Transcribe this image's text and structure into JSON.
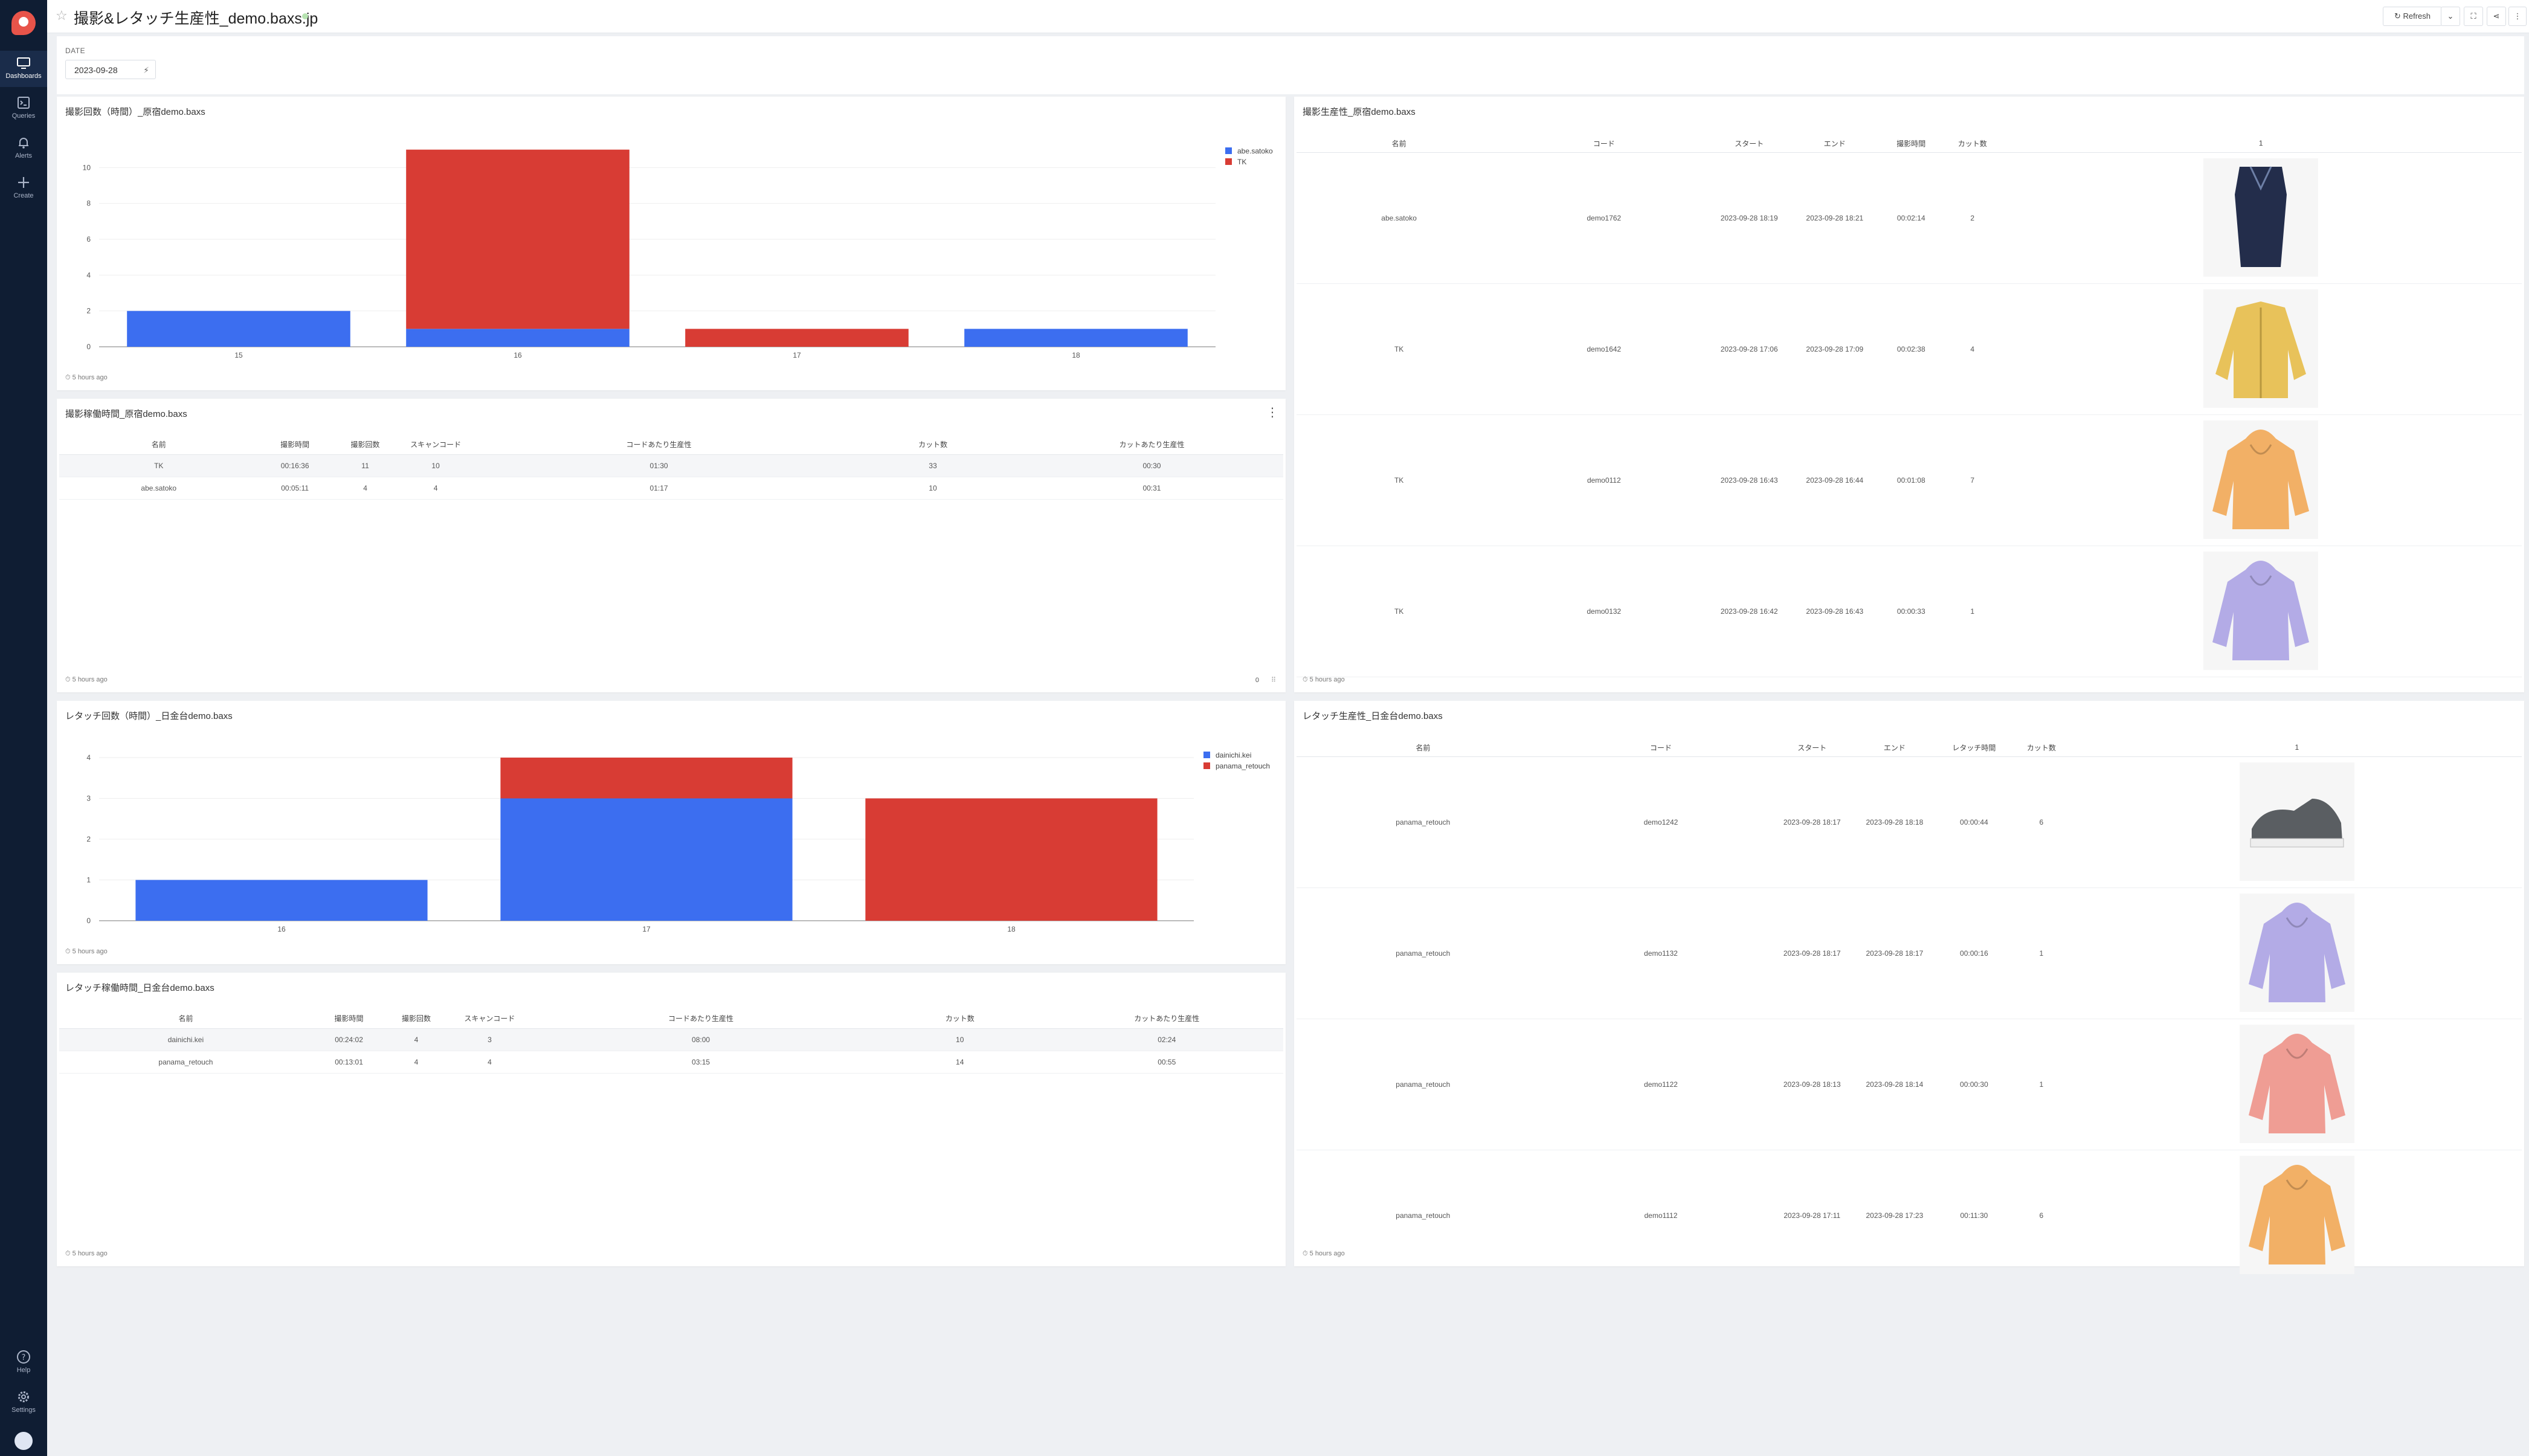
{
  "sidebar": {
    "items": [
      {
        "label": "Dashboards",
        "icon": "monitor-icon"
      },
      {
        "label": "Queries",
        "icon": "terminal-icon"
      },
      {
        "label": "Alerts",
        "icon": "bell-icon"
      },
      {
        "label": "Create",
        "icon": "plus-icon"
      }
    ],
    "bottom": [
      {
        "label": "Help",
        "icon": "help-icon"
      },
      {
        "label": "Settings",
        "icon": "gear-icon"
      }
    ]
  },
  "header": {
    "title": "撮影&レタッチ生産性_demo.baxs.jp",
    "refresh_label": "Refresh"
  },
  "filter": {
    "label": "DATE",
    "value": "2023-09-28"
  },
  "widgets": {
    "shoot_count": {
      "title": "撮影回数（時間）_原宿demo.baxs",
      "footer": "5 hours ago"
    },
    "shoot_time": {
      "title": "撮影稼働時間_原宿demo.baxs",
      "footer": "5 hours ago",
      "pager": "0",
      "columns": [
        "名前",
        "撮影時間",
        "撮影回数",
        "スキャンコード",
        "コードあたり生産性",
        "カット数",
        "カットあたり生産性"
      ],
      "rows": [
        [
          "TK",
          "00:16:36",
          "11",
          "10",
          "01:30",
          "33",
          "00:30"
        ],
        [
          "abe.satoko",
          "00:05:11",
          "4",
          "4",
          "01:17",
          "10",
          "00:31"
        ]
      ]
    },
    "retouch_count": {
      "title": "レタッチ回数（時間）_日金台demo.baxs",
      "footer": "5 hours ago"
    },
    "retouch_time": {
      "title": "レタッチ稼働時間_日金台demo.baxs",
      "footer": "5 hours ago",
      "columns": [
        "名前",
        "撮影時間",
        "撮影回数",
        "スキャンコード",
        "コードあたり生産性",
        "カット数",
        "カットあたり生産性"
      ],
      "rows": [
        [
          "dainichi.kei",
          "00:24:02",
          "4",
          "3",
          "08:00",
          "10",
          "02:24"
        ],
        [
          "panama_retouch",
          "00:13:01",
          "4",
          "4",
          "03:15",
          "14",
          "00:55"
        ]
      ]
    },
    "shoot_prod": {
      "title": "撮影生産性_原宿demo.baxs",
      "footer": "5 hours ago",
      "columns": [
        "名前",
        "コード",
        "スタート",
        "エンド",
        "撮影時間",
        "カット数",
        "1"
      ],
      "rows": [
        [
          "abe.satoko",
          "demo1762",
          "2023-09-28 18:19",
          "2023-09-28 18:21",
          "00:02:14",
          "2"
        ],
        [
          "TK",
          "demo1642",
          "2023-09-28 17:06",
          "2023-09-28 17:09",
          "00:02:38",
          "4"
        ],
        [
          "TK",
          "demo0112",
          "2023-09-28 16:43",
          "2023-09-28 16:44",
          "00:01:08",
          "7"
        ],
        [
          "TK",
          "demo0132",
          "2023-09-28 16:42",
          "2023-09-28 16:43",
          "00:00:33",
          "1"
        ]
      ]
    },
    "retouch_prod": {
      "title": "レタッチ生産性_日金台demo.baxs",
      "footer": "5 hours ago",
      "columns": [
        "名前",
        "コード",
        "スタート",
        "エンド",
        "レタッチ時間",
        "カット数",
        "1"
      ],
      "rows": [
        [
          "panama_retouch",
          "demo1242",
          "2023-09-28 18:17",
          "2023-09-28 18:18",
          "00:00:44",
          "6"
        ],
        [
          "panama_retouch",
          "demo1132",
          "2023-09-28 18:17",
          "2023-09-28 18:17",
          "00:00:16",
          "1"
        ],
        [
          "panama_retouch",
          "demo1122",
          "2023-09-28 18:13",
          "2023-09-28 18:14",
          "00:00:30",
          "1"
        ],
        [
          "panama_retouch",
          "demo1112",
          "2023-09-28 17:11",
          "2023-09-28 17:23",
          "00:11:30",
          "6"
        ]
      ]
    }
  },
  "chart_data": [
    {
      "type": "bar",
      "stacked": true,
      "categories": [
        "15",
        "16",
        "17",
        "18"
      ],
      "series": [
        {
          "name": "abe.satoko",
          "color": "#3c6ef0",
          "values": [
            2,
            1,
            0,
            1
          ]
        },
        {
          "name": "TK",
          "color": "#d83c34",
          "values": [
            0,
            10,
            1,
            0
          ]
        }
      ],
      "yticks": [
        0,
        2,
        4,
        6,
        8,
        10
      ],
      "ylim": [
        0,
        12
      ],
      "legend": "top-right"
    },
    {
      "type": "bar",
      "stacked": true,
      "categories": [
        "16",
        "17",
        "18"
      ],
      "series": [
        {
          "name": "dainichi.kei",
          "color": "#3c6ef0",
          "values": [
            1,
            3,
            0
          ]
        },
        {
          "name": "panama_retouch",
          "color": "#d83c34",
          "values": [
            0,
            1,
            3
          ]
        }
      ],
      "yticks": [
        0,
        1,
        2,
        3,
        4
      ],
      "ylim": [
        0,
        4
      ],
      "legend": "top-right"
    }
  ]
}
